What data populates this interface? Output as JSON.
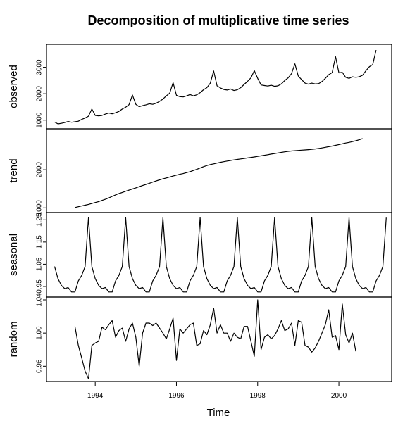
{
  "chart_data": {
    "type": "line",
    "title": "Decomposition of multiplicative time series",
    "xlabel": "Time",
    "xlim": [
      1992.8,
      2001.3
    ],
    "x_ticks": [
      "1994",
      "1996",
      "1998",
      "2000"
    ],
    "start": 1993.0,
    "frequency": 12,
    "panels": [
      {
        "name": "observed",
        "ylabel": "observed",
        "ylim": [
          780,
          3760
        ],
        "y_ticks": [
          "1000",
          "2000",
          "3000"
        ],
        "values": [
          930,
          860,
          880,
          910,
          950,
          920,
          940,
          960,
          1030,
          1080,
          1150,
          1420,
          1180,
          1160,
          1180,
          1230,
          1270,
          1240,
          1280,
          1330,
          1420,
          1490,
          1590,
          1950,
          1600,
          1510,
          1550,
          1580,
          1620,
          1600,
          1640,
          1710,
          1800,
          1920,
          2020,
          2420,
          1940,
          1890,
          1880,
          1920,
          1970,
          1920,
          1960,
          2040,
          2150,
          2230,
          2400,
          2860,
          2300,
          2220,
          2160,
          2140,
          2180,
          2120,
          2150,
          2230,
          2350,
          2470,
          2600,
          2870,
          2580,
          2330,
          2310,
          2290,
          2320,
          2280,
          2300,
          2370,
          2500,
          2600,
          2760,
          3130,
          2670,
          2530,
          2400,
          2360,
          2400,
          2370,
          2380,
          2460,
          2580,
          2720,
          2800,
          3400,
          2790,
          2810,
          2620,
          2580,
          2640,
          2620,
          2640,
          2700,
          2870,
          3020,
          3100,
          3650
        ]
      },
      {
        "name": "trend",
        "ylabel": "trend",
        "ylim": [
          950,
          3000
        ],
        "y_ticks": [
          "1000",
          "2000"
        ],
        "values": [
          null,
          null,
          null,
          null,
          null,
          null,
          1010,
          1030,
          1050,
          1070,
          1090,
          1115,
          1140,
          1165,
          1195,
          1225,
          1260,
          1300,
          1340,
          1375,
          1405,
          1435,
          1465,
          1495,
          1525,
          1555,
          1585,
          1615,
          1645,
          1675,
          1705,
          1735,
          1760,
          1785,
          1810,
          1835,
          1858,
          1880,
          1900,
          1925,
          1950,
          1980,
          2010,
          2045,
          2080,
          2110,
          2135,
          2155,
          2175,
          2195,
          2212,
          2228,
          2243,
          2257,
          2270,
          2283,
          2296,
          2309,
          2322,
          2335,
          2350,
          2365,
          2380,
          2395,
          2410,
          2425,
          2440,
          2455,
          2470,
          2482,
          2492,
          2500,
          2507,
          2514,
          2520,
          2527,
          2535,
          2545,
          2557,
          2572,
          2588,
          2605,
          2622,
          2640,
          2660,
          2680,
          2700,
          2718,
          2738,
          2760,
          2785,
          2815,
          null,
          null,
          null,
          null,
          null,
          null
        ]
      },
      {
        "name": "seasonal",
        "ylabel": "seasonal",
        "ylim": [
          0.915,
          1.27
        ],
        "y_ticks": [
          "0.95",
          "1.05",
          "1.15",
          "1.25"
        ],
        "values": [
          1.04,
          0.985,
          0.955,
          0.94,
          0.945,
          0.925,
          0.925,
          0.975,
          1.0,
          1.04,
          1.26,
          1.04,
          0.985,
          0.955,
          0.94,
          0.945,
          0.925,
          0.925,
          0.975,
          1.0,
          1.04,
          1.26,
          1.04,
          0.985,
          0.955,
          0.94,
          0.945,
          0.925,
          0.925,
          0.975,
          1.0,
          1.04,
          1.26,
          1.04,
          0.985,
          0.955,
          0.94,
          0.945,
          0.925,
          0.925,
          0.975,
          1.0,
          1.04,
          1.26,
          1.04,
          0.985,
          0.955,
          0.94,
          0.945,
          0.925,
          0.925,
          0.975,
          1.0,
          1.04,
          1.26,
          1.04,
          0.985,
          0.955,
          0.94,
          0.945,
          0.925,
          0.925,
          0.975,
          1.0,
          1.04,
          1.26,
          1.04,
          0.985,
          0.955,
          0.94,
          0.945,
          0.925,
          0.925,
          0.975,
          1.0,
          1.04,
          1.26,
          1.04,
          0.985,
          0.955,
          0.94,
          0.945,
          0.925,
          0.925,
          0.975,
          1.0,
          1.04,
          1.26,
          1.04,
          0.985,
          0.955,
          0.94,
          0.945,
          0.925,
          0.925,
          0.975,
          1.0,
          1.04,
          1.26
        ]
      },
      {
        "name": "random",
        "ylabel": "random",
        "ylim": [
          0.945,
          1.04
        ],
        "y_ticks": [
          "0.96",
          "1.00",
          "1.04"
        ],
        "values": [
          null,
          null,
          null,
          null,
          null,
          null,
          1.008,
          0.985,
          0.97,
          0.954,
          0.945,
          0.985,
          0.988,
          0.99,
          1.007,
          1.004,
          1.01,
          1.015,
          0.995,
          1.003,
          1.006,
          0.99,
          1.005,
          1.012,
          0.995,
          0.96,
          1.0,
          1.012,
          1.012,
          1.009,
          1.012,
          1.006,
          1.0,
          0.993,
          1.005,
          1.018,
          0.967,
          1.005,
          1.0,
          1.005,
          1.01,
          1.012,
          0.985,
          0.987,
          1.003,
          0.998,
          1.01,
          1.03,
          1.0,
          1.01,
          1.0,
          1.0,
          0.99,
          1.0,
          0.995,
          0.993,
          1.008,
          1.008,
          0.99,
          0.972,
          1.04,
          0.98,
          0.995,
          0.998,
          0.993,
          0.997,
          1.005,
          1.015,
          1.003,
          1.005,
          1.012,
          0.985,
          1.015,
          1.013,
          0.985,
          0.983,
          0.977,
          0.982,
          0.99,
          1.0,
          1.01,
          1.028,
          0.995,
          0.997,
          0.98,
          1.035,
          0.998,
          0.988,
          1.0,
          0.978,
          null,
          null,
          null,
          null,
          null,
          null
        ]
      }
    ]
  }
}
